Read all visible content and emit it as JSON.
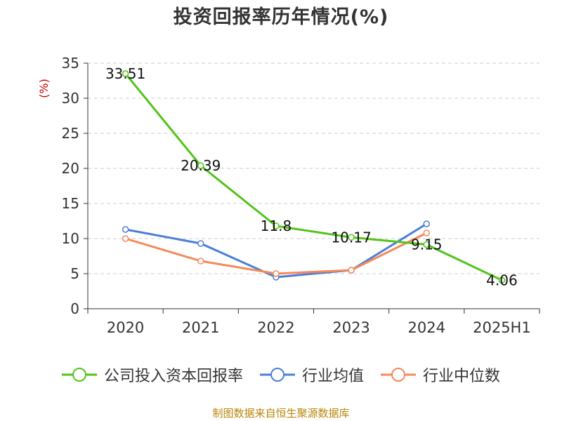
{
  "chart_data": {
    "type": "line",
    "title": "投资回报率历年情况(%)",
    "ylabel": "(%)",
    "xlabel": "",
    "categories": [
      "2020",
      "2021",
      "2022",
      "2023",
      "2024",
      "2025H1"
    ],
    "ylim": [
      0,
      35
    ],
    "yticks": [
      0,
      5,
      10,
      15,
      20,
      25,
      30,
      35
    ],
    "grid": true,
    "legend_position": "bottom",
    "series": [
      {
        "name": "公司投入资本回报率",
        "color": "#52c41a",
        "values": [
          33.51,
          20.39,
          11.8,
          10.17,
          9.15,
          4.06
        ],
        "labels": [
          "33.51",
          "20.39",
          "11.8",
          "10.17",
          "9.15",
          "4.06"
        ]
      },
      {
        "name": "行业均值",
        "color": "#4a7fd6",
        "values": [
          11.3,
          9.3,
          4.5,
          5.5,
          12.1,
          null
        ]
      },
      {
        "name": "行业中位数",
        "color": "#f5895a",
        "values": [
          10.0,
          6.8,
          5.0,
          5.5,
          10.8,
          null
        ]
      }
    ]
  },
  "source": "制图数据来自恒生聚源数据库"
}
